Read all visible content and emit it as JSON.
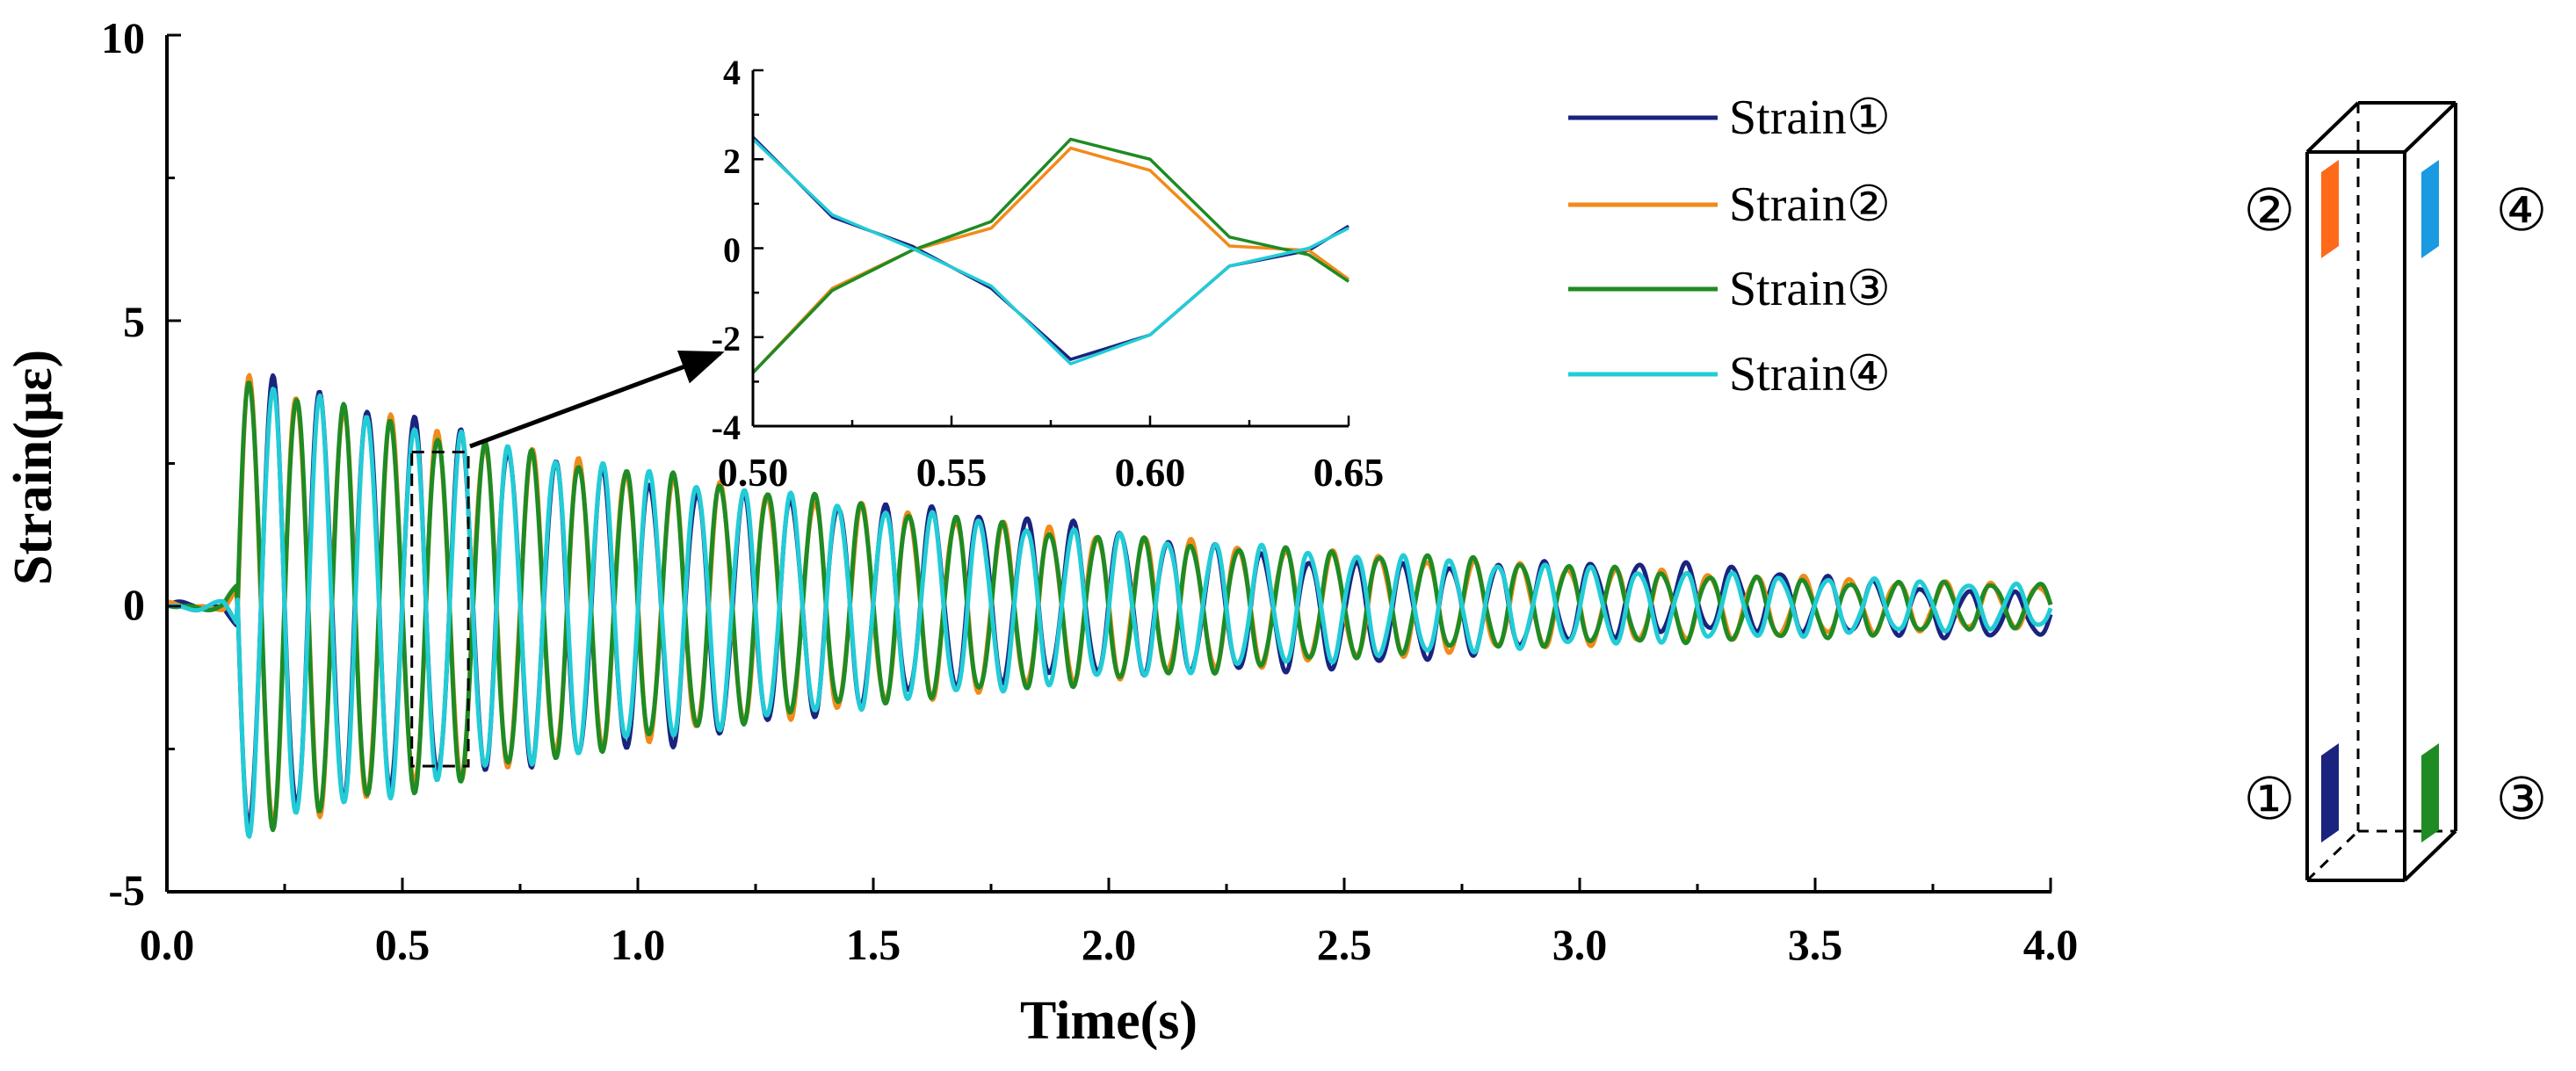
{
  "chart_data": [
    {
      "type": "line",
      "role": "main",
      "xlabel": "Time(s)",
      "ylabel": "Strain(με)",
      "xlim": [
        0,
        4
      ],
      "ylim": [
        -5,
        10
      ],
      "xticks": [
        "0.0",
        "0.5",
        "1.0",
        "1.5",
        "2.0",
        "2.5",
        "3.0",
        "3.5",
        "4.0"
      ],
      "yticks": [
        "-5",
        "0",
        "5",
        "10"
      ],
      "grid": false,
      "legend_position": "top-right",
      "signal_model": {
        "onset_time_s": 0.15,
        "frequency_hz": 10,
        "period_s": 0.1,
        "initial_amplitude": 4.0,
        "decay_per_s": 0.63,
        "description": "Damped sinusoidal oscillation; strains 1 and 4 are in phase, strains 2 and 3 are in phase, the two pairs are in anti-phase."
      },
      "annotation": "Dashed zoom box around t = 0.50–0.65 s with arrow pointing to inset",
      "zoom_box": {
        "x": [
          0.52,
          0.64
        ],
        "y": [
          -2.8,
          2.7
        ]
      },
      "series": [
        {
          "name": "Strain①",
          "color": "#1a237e",
          "phase": "negative",
          "extra_offset": 0.15
        },
        {
          "name": "Strain②",
          "color": "#f28a1a",
          "phase": "positive",
          "extra_offset": 0.0
        },
        {
          "name": "Strain③",
          "color": "#1e8b24",
          "phase": "positive",
          "extra_offset": 0.05
        },
        {
          "name": "Strain④",
          "color": "#22ccd6",
          "phase": "negative",
          "extra_offset": 0.0
        }
      ]
    },
    {
      "type": "line",
      "role": "inset",
      "xlabel": "",
      "ylabel": "",
      "xlim": [
        0.5,
        0.65
      ],
      "ylim": [
        -4,
        4
      ],
      "xticks": [
        "0.50",
        "0.55",
        "0.60",
        "0.65"
      ],
      "yticks": [
        "4",
        "2",
        "0",
        "-2",
        "-4"
      ],
      "x": [
        0.5,
        0.52,
        0.54,
        0.56,
        0.58,
        0.6,
        0.62,
        0.64,
        0.65
      ],
      "series": [
        {
          "name": "Strain①",
          "color": "#1a237e",
          "values": [
            2.5,
            0.7,
            0.05,
            -0.9,
            -2.5,
            -1.95,
            -0.4,
            -0.05,
            0.5
          ]
        },
        {
          "name": "Strain②",
          "color": "#f28a1a",
          "values": [
            -2.8,
            -0.9,
            -0.05,
            0.45,
            2.25,
            1.75,
            0.05,
            -0.05,
            -0.7
          ]
        },
        {
          "name": "Strain③",
          "color": "#1e8b24",
          "values": [
            -2.8,
            -0.95,
            -0.05,
            0.6,
            2.45,
            2.0,
            0.25,
            -0.15,
            -0.75
          ]
        },
        {
          "name": "Strain④",
          "color": "#22ccd6",
          "values": [
            2.45,
            0.75,
            0.0,
            -0.85,
            -2.6,
            -1.95,
            -0.4,
            0.0,
            0.45
          ]
        }
      ]
    }
  ],
  "legend": [
    {
      "label": "Strain①",
      "color": "#1a237e"
    },
    {
      "label": "Strain②",
      "color": "#f28a1a"
    },
    {
      "label": "Strain③",
      "color": "#1e8b24"
    },
    {
      "label": "Strain④",
      "color": "#22ccd6"
    }
  ],
  "sensor_diagram": {
    "labels": {
      "s1": "①",
      "s2": "②",
      "s3": "③",
      "s4": "④"
    },
    "colors": {
      "s1": "#1a237e",
      "s2": "#ff6a1a",
      "s3": "#1e8b24",
      "s4": "#1a9ae0"
    }
  }
}
